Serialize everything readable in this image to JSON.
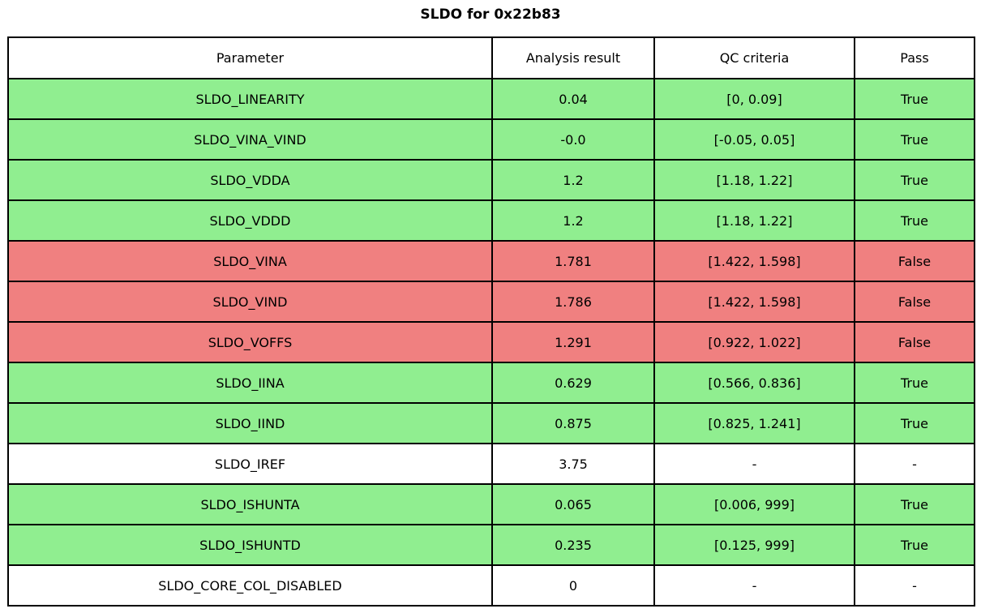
{
  "title": "SLDO for 0x22b83",
  "chart_data": {
    "type": "table",
    "title": "SLDO for 0x22b83",
    "columns": [
      "Parameter",
      "Analysis result",
      "QC criteria",
      "Pass"
    ],
    "rows": [
      {
        "parameter": "SLDO_LINEARITY",
        "analysis_result": "0.04",
        "qc_criteria": "[0, 0.09]",
        "pass": "True",
        "status": "pass"
      },
      {
        "parameter": "SLDO_VINA_VIND",
        "analysis_result": "-0.0",
        "qc_criteria": "[-0.05, 0.05]",
        "pass": "True",
        "status": "pass"
      },
      {
        "parameter": "SLDO_VDDA",
        "analysis_result": "1.2",
        "qc_criteria": "[1.18, 1.22]",
        "pass": "True",
        "status": "pass"
      },
      {
        "parameter": "SLDO_VDDD",
        "analysis_result": "1.2",
        "qc_criteria": "[1.18, 1.22]",
        "pass": "True",
        "status": "pass"
      },
      {
        "parameter": "SLDO_VINA",
        "analysis_result": "1.781",
        "qc_criteria": "[1.422, 1.598]",
        "pass": "False",
        "status": "fail"
      },
      {
        "parameter": "SLDO_VIND",
        "analysis_result": "1.786",
        "qc_criteria": "[1.422, 1.598]",
        "pass": "False",
        "status": "fail"
      },
      {
        "parameter": "SLDO_VOFFS",
        "analysis_result": "1.291",
        "qc_criteria": "[0.922, 1.022]",
        "pass": "False",
        "status": "fail"
      },
      {
        "parameter": "SLDO_IINA",
        "analysis_result": "0.629",
        "qc_criteria": "[0.566, 0.836]",
        "pass": "True",
        "status": "pass"
      },
      {
        "parameter": "SLDO_IIND",
        "analysis_result": "0.875",
        "qc_criteria": "[0.825, 1.241]",
        "pass": "True",
        "status": "pass"
      },
      {
        "parameter": "SLDO_IREF",
        "analysis_result": "3.75",
        "qc_criteria": "-",
        "pass": "-",
        "status": "neutral"
      },
      {
        "parameter": "SLDO_ISHUNTA",
        "analysis_result": "0.065",
        "qc_criteria": "[0.006, 999]",
        "pass": "True",
        "status": "pass"
      },
      {
        "parameter": "SLDO_ISHUNTD",
        "analysis_result": "0.235",
        "qc_criteria": "[0.125, 999]",
        "pass": "True",
        "status": "pass"
      },
      {
        "parameter": "SLDO_CORE_COL_DISABLED",
        "analysis_result": "0",
        "qc_criteria": "-",
        "pass": "-",
        "status": "neutral"
      }
    ]
  },
  "colors": {
    "pass_row_bg": "#90ee90",
    "fail_row_bg": "#f08080",
    "neutral_row_bg": "#ffffff",
    "border": "#000000"
  }
}
